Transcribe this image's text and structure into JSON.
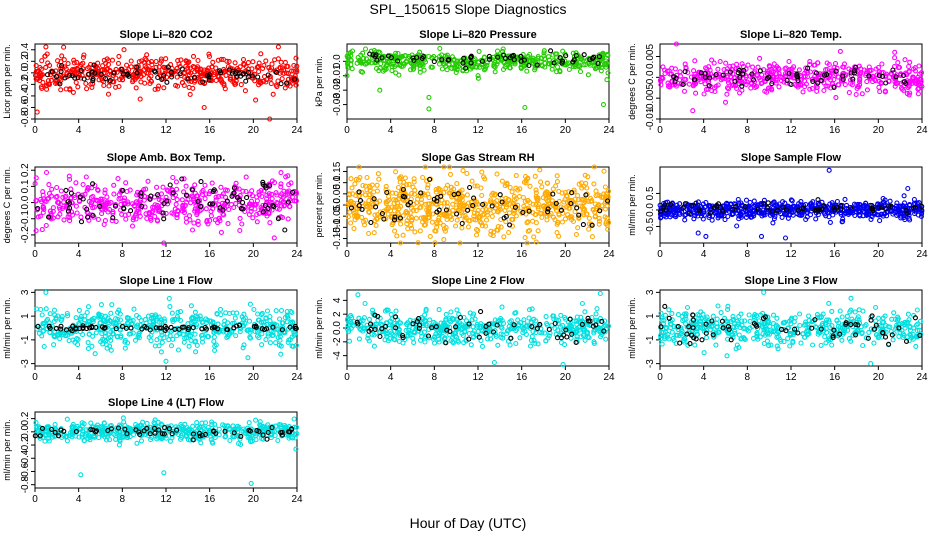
{
  "page": {
    "title": "SPL_150615  Slope Diagnostics",
    "xlabel": "Hour of Day (UTC)"
  },
  "chart_data": [
    {
      "type": "scatter",
      "title": "Slope Li–820 CO2",
      "ylabel": "Licor ppm per min.",
      "color": "#ff0000",
      "xlim": [
        0,
        24
      ],
      "ylim": [
        -0.8,
        0.5
      ],
      "xticks": [
        0,
        4,
        8,
        12,
        16,
        20,
        24
      ],
      "yticks": [
        -0.8,
        -0.6,
        -0.4,
        -0.2,
        0.0,
        0.2,
        0.4
      ],
      "series": [
        {
          "kind": "colored",
          "x_range": [
            0,
            24
          ],
          "center": 0.0,
          "spread": 0.15,
          "count": 500
        },
        {
          "kind": "black",
          "x_range": [
            0.5,
            24
          ],
          "center": -0.05,
          "spread": 0.08,
          "count": 70
        }
      ],
      "outliers": [
        [
          0.2,
          -0.68
        ],
        [
          15.5,
          -0.6
        ],
        [
          21.5,
          -0.8
        ],
        [
          22.3,
          0.45
        ],
        [
          1.0,
          0.45
        ]
      ]
    },
    {
      "type": "scatter",
      "title": "Slope Li–820 Pressure",
      "ylabel": "kPa per min.",
      "color": "#22cc00",
      "xlim": [
        0,
        24
      ],
      "ylim": [
        -0.04,
        0.012
      ],
      "xticks": [
        0,
        4,
        8,
        12,
        16,
        20,
        24
      ],
      "yticks": [
        -0.03,
        -0.02,
        -0.01,
        0.0
      ],
      "series": [
        {
          "kind": "colored",
          "x_range": [
            0,
            24
          ],
          "center": 0.0,
          "spread": 0.004,
          "count": 450
        },
        {
          "kind": "black",
          "x_range": [
            2,
            24
          ],
          "center": 0.002,
          "spread": 0.003,
          "count": 55
        }
      ],
      "outliers": [
        [
          0.0,
          -0.01
        ],
        [
          3.0,
          -0.02
        ],
        [
          7.5,
          -0.033
        ],
        [
          12.0,
          -0.01
        ],
        [
          16.3,
          -0.032
        ],
        [
          23.5,
          -0.03
        ],
        [
          7.5,
          -0.025
        ]
      ]
    },
    {
      "type": "scatter",
      "title": "Slope Li–820 Temp.",
      "ylabel": "degrees C per min.",
      "color": "#ff00ff",
      "xlim": [
        0,
        24
      ],
      "ylim": [
        -0.01,
        0.008
      ],
      "xticks": [
        0,
        4,
        8,
        12,
        16,
        20,
        24
      ],
      "yticks": [
        -0.01,
        -0.005,
        0.0,
        0.005
      ],
      "series": [
        {
          "kind": "colored",
          "x_range": [
            0,
            24
          ],
          "center": 0.0,
          "spread": 0.002,
          "count": 500
        },
        {
          "kind": "black",
          "x_range": [
            1,
            24
          ],
          "center": 0.0,
          "spread": 0.0015,
          "count": 60
        }
      ],
      "outliers": [
        [
          1.5,
          0.008
        ],
        [
          3.0,
          -0.008
        ],
        [
          6.0,
          -0.006
        ],
        [
          21.5,
          0.006
        ]
      ]
    },
    {
      "type": "scatter",
      "title": "Slope Amb. Box Temp.",
      "ylabel": "degrees C per min.",
      "color": "#ff00ff",
      "xlim": [
        0,
        24
      ],
      "ylim": [
        -0.25,
        0.22
      ],
      "xticks": [
        0,
        4,
        8,
        12,
        16,
        20,
        24
      ],
      "yticks": [
        -0.2,
        -0.1,
        0.0,
        0.1,
        0.2
      ],
      "series": [
        {
          "kind": "colored",
          "x_range": [
            0,
            24
          ],
          "center": 0.0,
          "spread": 0.08,
          "count": 500
        },
        {
          "kind": "black",
          "x_range": [
            0,
            24
          ],
          "center": 0.0,
          "spread": 0.08,
          "count": 70
        }
      ],
      "outliers": [
        [
          11.8,
          -0.25
        ]
      ]
    },
    {
      "type": "scatter",
      "title": "Slope Gas Stream RH",
      "ylabel": "percent per min.",
      "color": "#ffaa00",
      "xlim": [
        0,
        24
      ],
      "ylim": [
        -0.17,
        0.17
      ],
      "xticks": [
        0,
        4,
        8,
        12,
        16,
        20,
        24
      ],
      "yticks": [
        -0.15,
        -0.1,
        -0.05,
        0.0,
        0.05,
        0.1,
        0.15
      ],
      "series": [
        {
          "kind": "colored",
          "x_range": [
            0,
            24
          ],
          "center": 0.0,
          "spread": 0.07,
          "count": 700
        },
        {
          "kind": "black",
          "x_range": [
            0,
            24
          ],
          "center": 0.0,
          "spread": 0.05,
          "count": 60
        }
      ],
      "outliers": []
    },
    {
      "type": "scatter",
      "title": "Slope Sample Flow",
      "ylabel": "ml/min per min.",
      "color": "#0000ee",
      "xlim": [
        0,
        24
      ],
      "ylim": [
        -1.0,
        1.3
      ],
      "xticks": [
        0,
        4,
        8,
        12,
        16,
        20,
        24
      ],
      "yticks": [
        -0.5,
        0.0,
        0.5
      ],
      "series": [
        {
          "kind": "colored",
          "x_range": [
            0,
            24
          ],
          "center": 0.0,
          "spread": 0.15,
          "count": 600
        },
        {
          "kind": "black",
          "x_range": [
            0,
            24
          ],
          "center": 0.05,
          "spread": 0.1,
          "count": 60
        }
      ],
      "outliers": [
        [
          15.5,
          1.2
        ],
        [
          4.2,
          -0.8
        ],
        [
          9.3,
          -0.8
        ],
        [
          11.5,
          -0.85
        ],
        [
          22.7,
          0.65
        ],
        [
          3.5,
          -0.7
        ]
      ]
    },
    {
      "type": "scatter",
      "title": "Slope Line 1 Flow",
      "ylabel": "ml/min per min.",
      "color": "#00e0e0",
      "xlim": [
        0,
        24
      ],
      "ylim": [
        -3.2,
        3.2
      ],
      "xticks": [
        0,
        4,
        8,
        12,
        16,
        20,
        24
      ],
      "yticks": [
        -3,
        -1,
        1,
        3
      ],
      "series": [
        {
          "kind": "colored",
          "x_range": [
            0,
            24
          ],
          "center": 0.0,
          "spread": 0.9,
          "count": 500
        },
        {
          "kind": "black",
          "x_range": [
            0,
            24
          ],
          "center": 0.0,
          "spread": 0.12,
          "count": 70
        }
      ],
      "outliers": [
        [
          1.0,
          3.0
        ],
        [
          12.0,
          -2.8
        ],
        [
          19.5,
          -2.5
        ]
      ]
    },
    {
      "type": "scatter",
      "title": "Slope Line 2 Flow",
      "ylabel": "ml/min per min.",
      "color": "#00e0e0",
      "xlim": [
        0,
        24
      ],
      "ylim": [
        -5.5,
        5.5
      ],
      "xticks": [
        0,
        4,
        8,
        12,
        16,
        20,
        24
      ],
      "yticks": [
        -4,
        -2,
        0,
        2,
        4
      ],
      "series": [
        {
          "kind": "colored",
          "x_range": [
            0,
            24
          ],
          "center": 0.0,
          "spread": 1.3,
          "count": 500
        },
        {
          "kind": "black",
          "x_range": [
            0,
            24
          ],
          "center": 0.0,
          "spread": 1.2,
          "count": 60
        }
      ],
      "outliers": [
        [
          19.8,
          -5.3
        ],
        [
          23.2,
          5.0
        ],
        [
          13.5,
          -5.0
        ],
        [
          1.0,
          4.8
        ]
      ]
    },
    {
      "type": "scatter",
      "title": "Slope Line 3 Flow",
      "ylabel": "ml/min per min.",
      "color": "#00e0e0",
      "xlim": [
        0,
        24
      ],
      "ylim": [
        -3.2,
        3.2
      ],
      "xticks": [
        0,
        4,
        8,
        12,
        16,
        20,
        24
      ],
      "yticks": [
        -3,
        -1,
        1,
        3
      ],
      "series": [
        {
          "kind": "colored",
          "x_range": [
            0,
            24
          ],
          "center": 0.0,
          "spread": 0.8,
          "count": 500
        },
        {
          "kind": "black",
          "x_range": [
            0,
            24
          ],
          "center": 0.0,
          "spread": 0.8,
          "count": 60
        }
      ],
      "outliers": [
        [
          19.3,
          -3.0
        ],
        [
          9.5,
          3.0
        ],
        [
          17.5,
          2.5
        ]
      ]
    },
    {
      "type": "scatter",
      "title": "Slope Line 4 (LT) Flow",
      "ylabel": "ml/min per min.",
      "color": "#00e0e0",
      "xlim": [
        0,
        24
      ],
      "ylim": [
        -0.85,
        0.3
      ],
      "xticks": [
        0,
        4,
        8,
        12,
        16,
        20,
        24
      ],
      "yticks": [
        -0.8,
        -0.6,
        -0.4,
        -0.2,
        0.0,
        0.2
      ],
      "series": [
        {
          "kind": "colored",
          "x_range": [
            0,
            24
          ],
          "center": 0.0,
          "spread": 0.08,
          "count": 500
        },
        {
          "kind": "black",
          "x_range": [
            0,
            24
          ],
          "center": 0.0,
          "spread": 0.05,
          "count": 60
        }
      ],
      "outliers": [
        [
          4.2,
          -0.65
        ],
        [
          11.8,
          -0.62
        ],
        [
          19.8,
          -0.78
        ],
        [
          11.0,
          0.18
        ]
      ]
    }
  ]
}
